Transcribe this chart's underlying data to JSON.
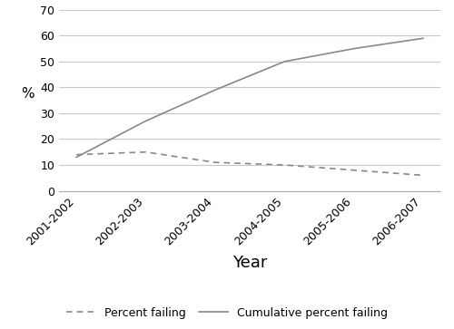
{
  "years": [
    "2001-2002",
    "2002-2003",
    "2003-2004",
    "2004-2005",
    "2005-2006",
    "2006-2007"
  ],
  "percent_failing": [
    14,
    15,
    11,
    10,
    8,
    6
  ],
  "cumulative_failing": [
    13,
    27,
    39,
    50,
    55,
    59
  ],
  "ylabel": "%",
  "xlabel": "Year",
  "ylim": [
    0,
    70
  ],
  "yticks": [
    0,
    10,
    20,
    30,
    40,
    50,
    60,
    70
  ],
  "line_color": "#888888",
  "grid_color": "#c8c8c8",
  "background_color": "#ffffff",
  "legend_percent_label": "Percent failing",
  "legend_cumulative_label": "Cumulative percent failing",
  "tick_fontsize": 9,
  "ylabel_fontsize": 11,
  "xlabel_fontsize": 13,
  "legend_fontsize": 9
}
